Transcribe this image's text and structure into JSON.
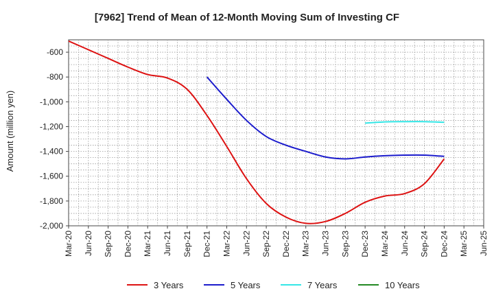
{
  "chart_data": {
    "type": "line",
    "title": "[7962]  Trend of Mean of 12-Month Moving Sum of Investing CF",
    "xlabel": "",
    "ylabel": "Amount (million yen)",
    "ylim": [
      -2000,
      -500
    ],
    "yticks": [
      -600,
      -800,
      -1000,
      -1200,
      -1400,
      -1600,
      -1800,
      -2000
    ],
    "ytick_labels": [
      "-600",
      "-800",
      "-1,000",
      "-1,200",
      "-1,400",
      "-1,600",
      "-1,800",
      "-2,000"
    ],
    "categories": [
      "Mar-20",
      "Jun-20",
      "Sep-20",
      "Dec-20",
      "Mar-21",
      "Jun-21",
      "Sep-21",
      "Dec-21",
      "Mar-22",
      "Jun-22",
      "Sep-22",
      "Dec-22",
      "Mar-23",
      "Jun-23",
      "Sep-23",
      "Dec-23",
      "Mar-24",
      "Jun-24",
      "Sep-24",
      "Dec-24",
      "Mar-25",
      "Jun-25"
    ],
    "grid": true,
    "legend_position": "bottom",
    "series": [
      {
        "name": "3 Years",
        "color": "#dd1111",
        "values": [
          -510,
          -580,
          -650,
          -720,
          -780,
          -808,
          -900,
          -1110,
          -1360,
          -1620,
          -1820,
          -1930,
          -1980,
          -1965,
          -1900,
          -1810,
          -1760,
          -1740,
          -1660,
          -1460,
          null,
          null
        ]
      },
      {
        "name": "5 Years",
        "color": "#1a1acc",
        "values": [
          null,
          null,
          null,
          null,
          null,
          null,
          null,
          -800,
          -980,
          -1150,
          -1280,
          -1350,
          -1400,
          -1445,
          -1460,
          -1445,
          -1435,
          -1430,
          -1430,
          -1440,
          null,
          null
        ]
      },
      {
        "name": "7 Years",
        "color": "#33e6e6",
        "values": [
          null,
          null,
          null,
          null,
          null,
          null,
          null,
          null,
          null,
          null,
          null,
          null,
          null,
          null,
          null,
          -1172,
          -1162,
          -1160,
          -1160,
          -1165,
          null,
          null
        ]
      },
      {
        "name": "10 Years",
        "color": "#228822",
        "values": [
          null,
          null,
          null,
          null,
          null,
          null,
          null,
          null,
          null,
          null,
          null,
          null,
          null,
          null,
          null,
          null,
          null,
          null,
          null,
          null,
          null,
          null
        ]
      }
    ]
  }
}
